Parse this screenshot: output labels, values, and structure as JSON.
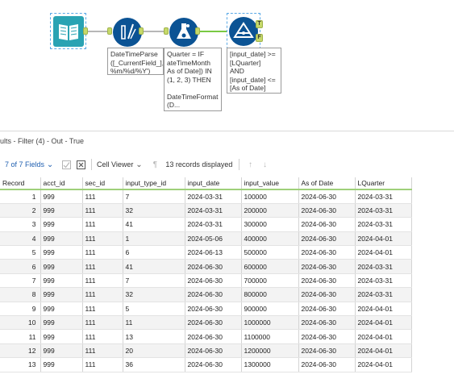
{
  "canvas": {
    "tools": {
      "input": {
        "icon": "book-icon"
      },
      "datetime": {
        "icon": "datetime-parse-icon",
        "annotation": "DateTimeParse\n([_CurrentField_],'\n%m/%d/%Y')"
      },
      "formula": {
        "icon": "flask-icon",
        "annotation": "Quarter = IF\nateTimeMonth\nAs of Date]) IN\n(1, 2, 3) THEN\n\nDateTimeFormat\n(D..."
      },
      "filter": {
        "icon": "filter-icon",
        "annotation": "[input_date] >=\n[LQuarter]\nAND\n[input_date] <=\n[As of Date]",
        "true_label": "T",
        "false_label": "F"
      }
    }
  },
  "results": {
    "title": "ults - Filter (4) - Out - True"
  },
  "toolbar": {
    "fields": "7 of 7 Fields",
    "viewer": "Cell Viewer",
    "records": "13 records displayed"
  },
  "table": {
    "headers": [
      "Record",
      "acct_id",
      "sec_id",
      "input_type_id",
      "input_date",
      "input_value",
      "As of Date",
      "LQuarter"
    ],
    "rows": [
      [
        "1",
        "999",
        "111",
        "7",
        "2024-03-31",
        "100000",
        "2024-06-30",
        "2024-03-31"
      ],
      [
        "2",
        "999",
        "111",
        "32",
        "2024-03-31",
        "200000",
        "2024-06-30",
        "2024-03-31"
      ],
      [
        "3",
        "999",
        "111",
        "41",
        "2024-03-31",
        "300000",
        "2024-06-30",
        "2024-03-31"
      ],
      [
        "4",
        "999",
        "111",
        "1",
        "2024-05-06",
        "400000",
        "2024-06-30",
        "2024-04-01"
      ],
      [
        "5",
        "999",
        "111",
        "6",
        "2024-06-13",
        "500000",
        "2024-06-30",
        "2024-04-01"
      ],
      [
        "6",
        "999",
        "111",
        "41",
        "2024-06-30",
        "600000",
        "2024-06-30",
        "2024-03-31"
      ],
      [
        "7",
        "999",
        "111",
        "7",
        "2024-06-30",
        "700000",
        "2024-06-30",
        "2024-03-31"
      ],
      [
        "8",
        "999",
        "111",
        "32",
        "2024-06-30",
        "800000",
        "2024-06-30",
        "2024-03-31"
      ],
      [
        "9",
        "999",
        "111",
        "5",
        "2024-06-30",
        "900000",
        "2024-06-30",
        "2024-04-01"
      ],
      [
        "10",
        "999",
        "111",
        "11",
        "2024-06-30",
        "1000000",
        "2024-06-30",
        "2024-04-01"
      ],
      [
        "11",
        "999",
        "111",
        "13",
        "2024-06-30",
        "1100000",
        "2024-06-30",
        "2024-04-01"
      ],
      [
        "12",
        "999",
        "111",
        "20",
        "2024-06-30",
        "1200000",
        "2024-06-30",
        "2024-04-01"
      ],
      [
        "13",
        "999",
        "111",
        "36",
        "2024-06-30",
        "1300000",
        "2024-06-30",
        "2024-04-01"
      ]
    ]
  },
  "colors": {
    "tool_blue": "#0b5394",
    "input_teal": "#2aa3b3",
    "anchor_green": "#c6d96a",
    "header_underline": "#9fd07a"
  }
}
